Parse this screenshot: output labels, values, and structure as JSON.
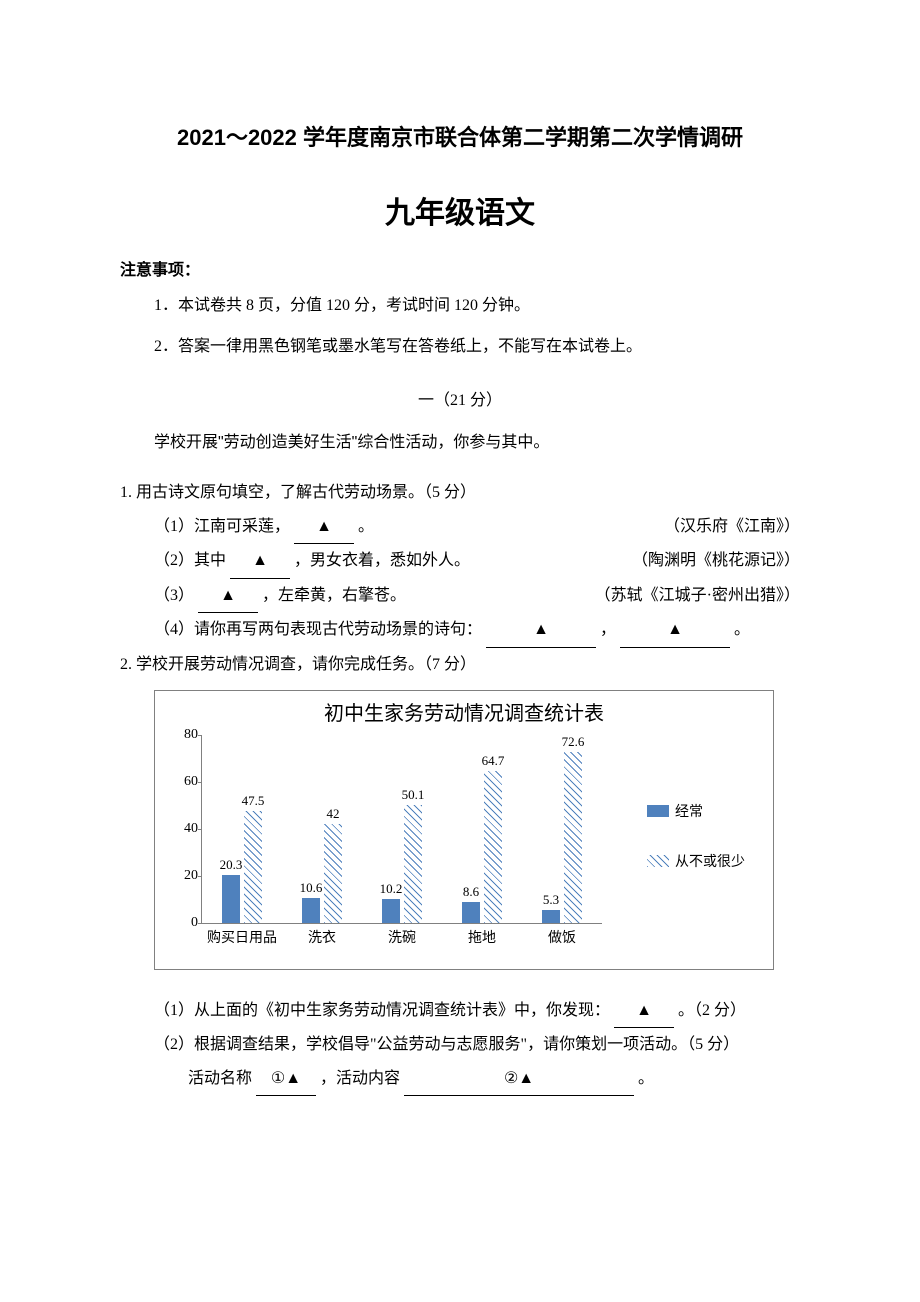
{
  "header": {
    "main_title": "2021～2022 学年度南京市联合体第二学期第二次学情调研",
    "sub_title": "九年级语文",
    "notice_label": "注意事项：",
    "notice1": "1．本试卷共 8 页，分值 120 分，考试时间 120 分钟。",
    "notice2": "2．答案一律用黑色钢笔或墨水笔写在答卷纸上，不能写在本试卷上。"
  },
  "section1": {
    "header": "一（21 分）",
    "intro": "学校开展\"劳动创造美好生活\"综合性活动，你参与其中。"
  },
  "q1": {
    "stem": "1. 用古诗文原句填空，了解古代劳动场景。（5 分）",
    "p1_left": "（1）江南可采莲，",
    "p1_after": "。",
    "p1_src": "（汉乐府《江南》）",
    "p2_left": "（2）其中",
    "p2_after": "，男女衣着，悉如外人。",
    "p2_src": "（陶渊明《桃花源记》）",
    "p3_left": "（3）",
    "p3_after": "，左牵黄，右擎苍。",
    "p3_src": "（苏轼《江城子·密州出猎》）",
    "p4_left": "（4）请你再写两句表现古代劳动场景的诗句：",
    "p4_comma": "，",
    "p4_end": "。",
    "blank_char": "▲"
  },
  "q2": {
    "stem": "2. 学校开展劳动情况调查，请你完成任务。（7 分）",
    "sub1_left": "（1）从上面的《初中生家务劳动情况调查统计表》中，你发现：",
    "sub1_after": "。（2 分）",
    "sub2": "（2）根据调查结果，学校倡导\"公益劳动与志愿服务\"，请你策划一项活动。（5 分）",
    "act_name_label": "活动名称",
    "act_name_blank": "①▲",
    "act_content_label": "，活动内容",
    "act_content_blank": "②▲",
    "act_end": "。"
  },
  "chart": {
    "title": "初中生家务劳动情况调查统计表",
    "ymax": 80,
    "ytick_step": 20,
    "yticks": [
      0,
      20,
      40,
      60,
      80
    ],
    "categories": [
      "购买日用品",
      "洗衣",
      "洗碗",
      "拖地",
      "做饭"
    ],
    "series_solid_name": "经常",
    "series_hatch_name": "从不或很少",
    "solid_color": "#4f81bd",
    "values_solid": [
      20.3,
      10.6,
      10.2,
      8.6,
      5.3
    ],
    "values_hatch": [
      47.5,
      42,
      50.1,
      64.7,
      72.6
    ],
    "border_color": "#808080",
    "background_color": "#ffffff"
  }
}
